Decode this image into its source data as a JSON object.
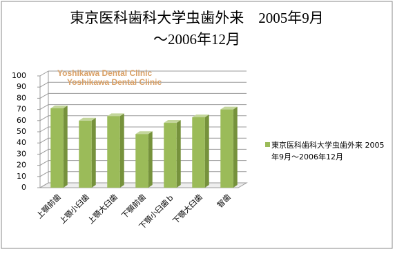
{
  "chart_data": {
    "type": "bar",
    "title": [
      "東京医科歯科大学虫歯外来　2005年9月",
      "～2006年12月"
    ],
    "annotations": [
      "Yoshikawa Dental Clinic",
      "Yoshikawa Dental Clinic"
    ],
    "categories": [
      "上顎前歯",
      "上顎小臼歯",
      "上顎大臼歯",
      "下顎前歯",
      "下顎小臼歯ｂ",
      "下顎大臼歯",
      "智歯"
    ],
    "series": [
      {
        "name": "東京医科歯科大学虫歯外来 2005年9月～2006年12月",
        "color": "#9bbb59",
        "values": [
          71,
          60,
          64,
          48,
          58,
          63,
          70
        ]
      }
    ],
    "ylim": [
      0,
      100
    ],
    "yticks": [
      0,
      10,
      20,
      30,
      40,
      50,
      60,
      70,
      80,
      90,
      100
    ],
    "grid": true,
    "legend": "right"
  }
}
